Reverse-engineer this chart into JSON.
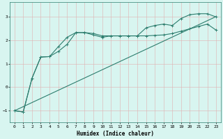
{
  "xlabel": "Humidex (Indice chaleur)",
  "bg_color": "#d8f5f0",
  "grid_color": "#c8e8e2",
  "line_color": "#2d7d6e",
  "xlim": [
    -0.5,
    23.5
  ],
  "ylim": [
    -1.5,
    3.6
  ],
  "yticks": [
    -1,
    0,
    1,
    2,
    3
  ],
  "xticks": [
    0,
    1,
    2,
    3,
    4,
    5,
    6,
    7,
    8,
    9,
    10,
    11,
    12,
    13,
    14,
    15,
    16,
    17,
    18,
    19,
    20,
    21,
    22,
    23
  ],
  "line1_x": [
    0,
    1,
    2,
    3,
    4,
    5,
    6,
    7,
    8,
    9,
    10,
    11,
    12,
    13,
    14,
    15,
    16,
    17,
    18,
    19,
    20,
    21,
    22,
    23
  ],
  "line1_y": [
    -1.0,
    -1.05,
    0.38,
    1.28,
    1.3,
    1.72,
    2.12,
    2.32,
    2.32,
    2.22,
    2.12,
    2.18,
    2.18,
    2.18,
    2.18,
    2.18,
    2.2,
    2.22,
    2.28,
    2.38,
    2.48,
    2.58,
    2.68,
    2.42
  ],
  "line2_x": [
    0,
    1,
    2,
    3,
    4,
    5,
    6,
    7,
    8,
    9,
    10,
    11,
    12,
    13,
    14,
    15,
    16,
    17,
    18,
    19,
    20,
    21,
    22,
    23
  ],
  "line2_y": [
    -1.0,
    -1.05,
    0.38,
    1.28,
    1.3,
    1.52,
    1.82,
    2.32,
    2.32,
    2.28,
    2.18,
    2.18,
    2.18,
    2.18,
    2.18,
    2.52,
    2.62,
    2.68,
    2.62,
    2.92,
    3.08,
    3.12,
    3.12,
    2.98
  ],
  "line3_x": [
    0,
    23
  ],
  "line3_y": [
    -1.0,
    3.0
  ]
}
